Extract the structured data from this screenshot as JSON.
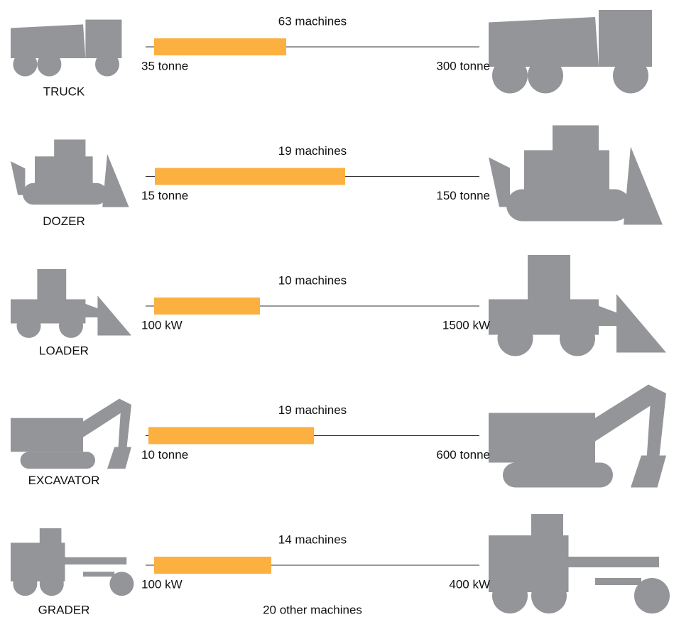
{
  "rows": [
    {
      "name": "TRUCK",
      "count": "63 machines",
      "min": "35 tonne",
      "max": "300 tonne"
    },
    {
      "name": "DOZER",
      "count": "19 machines",
      "min": "15 tonne",
      "max": "150 tonne"
    },
    {
      "name": "LOADER",
      "count": "10 machines",
      "min": "100 kW",
      "max": "1500 kW"
    },
    {
      "name": "EXCAVATOR",
      "count": "19 machines",
      "min": "10 tonne",
      "max": "600 tonne"
    },
    {
      "name": "GRADER",
      "count": "14 machines",
      "min": "100 kW",
      "max": "400 kW"
    }
  ],
  "footer": "20 other machines"
}
